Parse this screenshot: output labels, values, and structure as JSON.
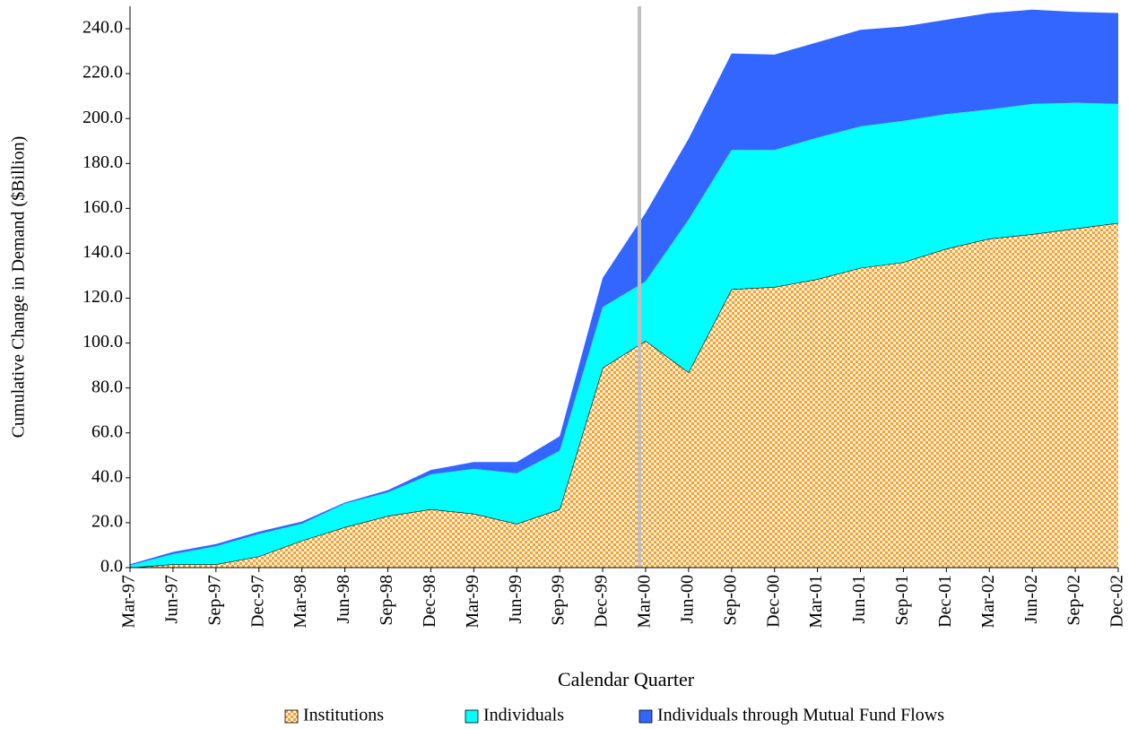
{
  "chart_data": {
    "type": "stacked-area",
    "x_label": "Calendar Quarter",
    "y_label": "Cumulative Change in Demand ($Billion)",
    "categories": [
      "Mar-97",
      "Jun-97",
      "Sep-97",
      "Dec-97",
      "Mar-98",
      "Jun-98",
      "Sep-98",
      "Dec-98",
      "Mar-99",
      "Jun-99",
      "Sep-99",
      "Dec-99",
      "Mar-00",
      "Jun-00",
      "Sep-00",
      "Dec-00",
      "Mar-01",
      "Jun-01",
      "Sep-01",
      "Dec-01",
      "Mar-02",
      "Jun-02",
      "Sep-02",
      "Dec-02"
    ],
    "series": [
      {
        "name": "Institutions",
        "color": "#f5a030",
        "values": [
          0,
          1.5,
          1.5,
          5,
          12,
          18,
          23,
          26,
          24,
          19.5,
          26,
          89,
          101,
          87,
          124,
          125,
          128.5,
          133.5,
          136,
          142,
          146.5,
          148.5,
          151,
          153.5
        ]
      },
      {
        "name": "Individuals",
        "color": "#00ffff",
        "values": [
          1,
          4.5,
          8,
          10,
          7.5,
          10.5,
          10.5,
          15.5,
          20,
          22.5,
          26,
          27,
          26.5,
          68,
          62,
          61,
          63,
          63,
          63,
          60,
          57.5,
          58,
          56,
          53
        ]
      },
      {
        "name": "Individuals through Mutual Fund Flows",
        "color": "#3366ff",
        "values": [
          0.5,
          1,
          1,
          1,
          1,
          0.5,
          1,
          2,
          3,
          5,
          6.5,
          13,
          30.5,
          36,
          43,
          42.5,
          42.5,
          43,
          42,
          42,
          43,
          42,
          40.5,
          40.5
        ]
      }
    ],
    "ylim": [
      0,
      250
    ],
    "yticks": [
      {
        "value": 0,
        "label": "0.0"
      },
      {
        "value": 20,
        "label": "20.0"
      },
      {
        "value": 40,
        "label": "40.0"
      },
      {
        "value": 60,
        "label": "60.0"
      },
      {
        "value": 80,
        "label": "80.0"
      },
      {
        "value": 100,
        "label": "100.0"
      },
      {
        "value": 120,
        "label": "120.0"
      },
      {
        "value": 140,
        "label": "140.0"
      },
      {
        "value": 160,
        "label": "160.0"
      },
      {
        "value": 180,
        "label": "180.0"
      },
      {
        "value": 200,
        "label": "200.0"
      },
      {
        "value": 220,
        "label": "220.0"
      },
      {
        "value": 240,
        "label": "240.0"
      }
    ],
    "legend": "bottom"
  }
}
